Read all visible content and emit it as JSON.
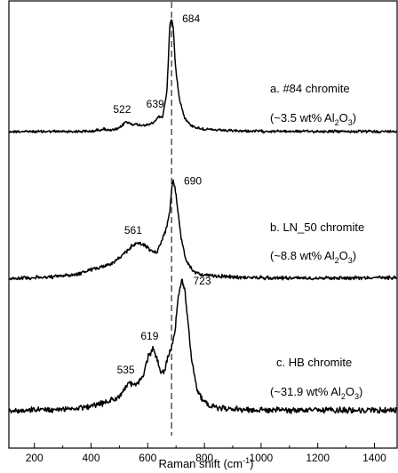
{
  "chart_data": {
    "type": "line",
    "xlabel": "Raman shift (cm",
    "xlabel_sup": "-1",
    "xlabel_end": ")",
    "xlim": [
      110,
      1480
    ],
    "xticks": [
      200,
      400,
      600,
      800,
      1000,
      1200,
      1400
    ],
    "xtick_labels": [
      "200",
      "400",
      "600",
      "800",
      "1000",
      "1200",
      "1400"
    ],
    "dashed_reference_x": 684,
    "series": [
      {
        "name": "a. #84 chromite",
        "note_pre": "(~3.5 wt% Al",
        "note_sub1": "2",
        "note_mid": "O",
        "note_sub2": "3",
        "note_post": ")",
        "peaks": [
          {
            "label": "522",
            "x": 522
          },
          {
            "label": "639",
            "x": 639
          },
          {
            "label": "684",
            "x": 684
          }
        ],
        "profile": [
          [
            110,
            0
          ],
          [
            400,
            0.2
          ],
          [
            445,
            2.5
          ],
          [
            470,
            0.8
          ],
          [
            500,
            3.0
          ],
          [
            522,
            9.0
          ],
          [
            545,
            7.0
          ],
          [
            570,
            6.0
          ],
          [
            600,
            6.0
          ],
          [
            620,
            8.0
          ],
          [
            639,
            14.0
          ],
          [
            652,
            13.0
          ],
          [
            668,
            38.0
          ],
          [
            678,
            98.0
          ],
          [
            684,
            104.0
          ],
          [
            690,
            96.0
          ],
          [
            698,
            60.0
          ],
          [
            712,
            30.0
          ],
          [
            730,
            13.0
          ],
          [
            750,
            6.0
          ],
          [
            780,
            3.0
          ],
          [
            830,
            1.5
          ],
          [
            900,
            0.6
          ],
          [
            1000,
            0.3
          ],
          [
            1480,
            0
          ]
        ]
      },
      {
        "name": "b. LN_50 chromite",
        "note_pre": "(~8.8 wt% Al",
        "note_sub1": "2",
        "note_mid": "O",
        "note_sub2": "3",
        "note_post": ")",
        "peaks": [
          {
            "label": "561",
            "x": 561
          },
          {
            "label": "690",
            "x": 690
          }
        ],
        "profile": [
          [
            110,
            0
          ],
          [
            250,
            1.0
          ],
          [
            350,
            4.0
          ],
          [
            430,
            11.0
          ],
          [
            470,
            14.0
          ],
          [
            510,
            22.0
          ],
          [
            540,
            31.0
          ],
          [
            561,
            35.0
          ],
          [
            590,
            33.0
          ],
          [
            612,
            27.0
          ],
          [
            632,
            25.0
          ],
          [
            650,
            38.0
          ],
          [
            665,
            48.0
          ],
          [
            678,
            66.0
          ],
          [
            686,
            92.0
          ],
          [
            690,
            96.0
          ],
          [
            696,
            90.0
          ],
          [
            706,
            68.0
          ],
          [
            718,
            40.0
          ],
          [
            735,
            17.0
          ],
          [
            760,
            7.0
          ],
          [
            800,
            3.0
          ],
          [
            900,
            1.2
          ],
          [
            1000,
            0.5
          ],
          [
            1200,
            0.3
          ],
          [
            1480,
            0.8
          ]
        ]
      },
      {
        "name": "c. HB chromite",
        "note_pre": "(~31.9 wt% Al",
        "note_sub1": "2",
        "note_mid": "O",
        "note_sub2": "3",
        "note_post": ")",
        "peaks": [
          {
            "label": "535",
            "x": 535
          },
          {
            "label": "619",
            "x": 619
          },
          {
            "label": "723",
            "x": 723
          }
        ],
        "profile": [
          [
            110,
            0
          ],
          [
            300,
            1.0
          ],
          [
            420,
            4.0
          ],
          [
            470,
            8.0
          ],
          [
            500,
            11.0
          ],
          [
            520,
            17.0
          ],
          [
            535,
            22.0
          ],
          [
            548,
            19.0
          ],
          [
            565,
            21.0
          ],
          [
            585,
            28.0
          ],
          [
            602,
            42.0
          ],
          [
            619,
            48.0
          ],
          [
            633,
            40.0
          ],
          [
            647,
            28.0
          ],
          [
            660,
            32.0
          ],
          [
            672,
            42.0
          ],
          [
            684,
            48.0
          ],
          [
            696,
            62.0
          ],
          [
            708,
            88.0
          ],
          [
            717,
            98.0
          ],
          [
            723,
            100.0
          ],
          [
            731,
            92.0
          ],
          [
            742,
            68.0
          ],
          [
            756,
            38.0
          ],
          [
            775,
            16.0
          ],
          [
            800,
            6.0
          ],
          [
            850,
            2.0
          ],
          [
            950,
            0.8
          ],
          [
            1100,
            0.4
          ],
          [
            1480,
            0.3
          ]
        ]
      }
    ]
  }
}
